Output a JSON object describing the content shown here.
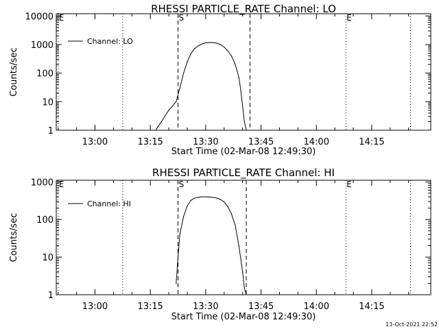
{
  "chart_data": [
    {
      "type": "line",
      "title": "RHESSI PARTICLE_RATE Channel: LO",
      "xlabel": "Start Time (02-Mar-08 12:49:30)",
      "ylabel": "Counts/sec",
      "yscale": "log",
      "ylim": [
        1,
        12000
      ],
      "xlim": [
        "12:49:30",
        "14:31:00"
      ],
      "x_ticks": [
        "13:00",
        "13:15",
        "13:30",
        "13:45",
        "14:00",
        "14:15"
      ],
      "y_ticks": [
        "1",
        "10",
        "100",
        "1000",
        "10000"
      ],
      "legend": "top-left",
      "series": [
        {
          "name": "Channel: LO",
          "color": "#000000",
          "x": [
            "13:16:30",
            "13:17:00",
            "13:17:30",
            "13:18:00",
            "13:18:30",
            "13:19:00",
            "13:19:30",
            "13:20:00",
            "13:21:00",
            "13:22:00",
            "13:23:00",
            "13:24:00",
            "13:25:00",
            "13:26:00",
            "13:27:00",
            "13:28:00",
            "13:29:00",
            "13:30:00",
            "13:31:00",
            "13:32:00",
            "13:33:00",
            "13:34:00",
            "13:35:00",
            "13:36:00",
            "13:37:00",
            "13:38:00",
            "13:39:00",
            "13:39:30",
            "13:40:00",
            "13:40:30",
            "13:41:00"
          ],
          "y": [
            1,
            1.3,
            1.6,
            2,
            2.5,
            3.2,
            4,
            5,
            7,
            10,
            30,
            100,
            250,
            480,
            720,
            900,
            1050,
            1150,
            1180,
            1170,
            1120,
            1000,
            820,
            600,
            400,
            200,
            70,
            25,
            7,
            2,
            1
          ]
        }
      ],
      "markers": [
        {
          "label": "E",
          "x": "12:50:00",
          "style": "dotted"
        },
        {
          "label": "",
          "x": "13:07:30",
          "style": "dotted"
        },
        {
          "label": "S",
          "x": "13:22:30",
          "style": "dashed"
        },
        {
          "label": "",
          "x": "13:42:00",
          "style": "dashed"
        },
        {
          "label": "E",
          "x": "14:08:00",
          "style": "dotted"
        },
        {
          "label": "",
          "x": "14:25:30",
          "style": "dotted"
        }
      ]
    },
    {
      "type": "line",
      "title": "RHESSI PARTICLE_RATE Channel: HI",
      "xlabel": "Start Time (02-Mar-08 12:49:30)",
      "ylabel": "Counts/sec",
      "yscale": "log",
      "ylim": [
        1,
        1100
      ],
      "xlim": [
        "12:49:30",
        "14:31:00"
      ],
      "x_ticks": [
        "13:00",
        "13:15",
        "13:30",
        "13:45",
        "14:00",
        "14:15"
      ],
      "y_ticks": [
        "1",
        "10",
        "100",
        "1000"
      ],
      "legend": "top-left",
      "series": [
        {
          "name": "Channel: HI",
          "color": "#000000",
          "x": [
            "13:22:00",
            "13:22:30",
            "13:23:00",
            "13:24:00",
            "13:25:00",
            "13:26:00",
            "13:27:00",
            "13:28:00",
            "13:29:00",
            "13:30:00",
            "13:31:00",
            "13:32:00",
            "13:33:00",
            "13:34:00",
            "13:35:00",
            "13:36:00",
            "13:37:00",
            "13:38:00",
            "13:39:00",
            "13:40:00",
            "13:40:30",
            "13:41:00"
          ],
          "y": [
            2,
            10,
            40,
            120,
            230,
            320,
            370,
            390,
            400,
            400,
            395,
            385,
            370,
            340,
            290,
            220,
            140,
            70,
            20,
            4,
            1.5,
            1
          ]
        }
      ],
      "markers": [
        {
          "label": "E",
          "x": "12:50:00",
          "style": "dotted"
        },
        {
          "label": "",
          "x": "13:07:30",
          "style": "dotted"
        },
        {
          "label": "S",
          "x": "13:22:30",
          "style": "dashed"
        },
        {
          "label": "",
          "x": "13:41:00",
          "style": "dashed"
        },
        {
          "label": "E",
          "x": "14:08:00",
          "style": "dotted"
        },
        {
          "label": "",
          "x": "14:25:30",
          "style": "dotted"
        }
      ]
    }
  ],
  "footer": {
    "timestamp": "13-Oct-2021 22:52"
  }
}
